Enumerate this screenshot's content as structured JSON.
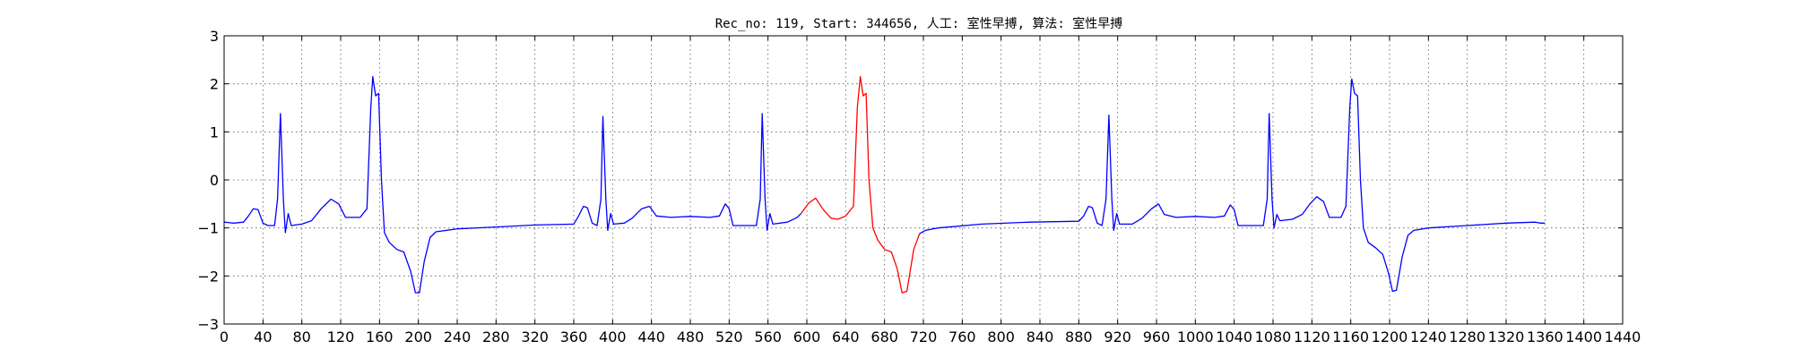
{
  "chart_data": {
    "type": "line",
    "title": "Rec_no: 119, Start: 344656, 人工: 室性早搏, 算法: 室性早搏",
    "xlabel": "",
    "ylabel": "",
    "xlim": [
      0,
      1440
    ],
    "ylim": [
      -3,
      3
    ],
    "grid": true,
    "xticks": [
      0,
      40,
      80,
      120,
      160,
      200,
      240,
      280,
      320,
      360,
      400,
      440,
      480,
      520,
      560,
      600,
      640,
      680,
      720,
      760,
      800,
      840,
      880,
      920,
      960,
      1000,
      1040,
      1080,
      1120,
      1160,
      1200,
      1240,
      1280,
      1320,
      1360,
      1400,
      1440
    ],
    "xtick_labels": [
      "0",
      "40",
      "80",
      "120",
      "160",
      "200",
      "240",
      "280",
      "320",
      "360",
      "400",
      "440",
      "480",
      "520",
      "560",
      "600",
      "640",
      "680",
      "720",
      "760",
      "800",
      "840",
      "880",
      "920",
      "960",
      "1000",
      "1040",
      "1080",
      "1120",
      "1160",
      "1200",
      "1240",
      "1280",
      "1320",
      "1360",
      "1400",
      "1440"
    ],
    "yticks": [
      -3,
      -2,
      -1,
      0,
      1,
      2,
      3
    ],
    "ytick_labels": [
      "−3",
      "−2",
      "−1",
      "0",
      "1",
      "2",
      "3"
    ],
    "series": [
      {
        "color": "#0000ff",
        "points": [
          [
            0,
            -0.88
          ],
          [
            10,
            -0.9
          ],
          [
            20,
            -0.88
          ],
          [
            25,
            -0.75
          ],
          [
            30,
            -0.6
          ],
          [
            35,
            -0.62
          ],
          [
            40,
            -0.9
          ],
          [
            45,
            -0.95
          ],
          [
            52,
            -0.95
          ],
          [
            55,
            -0.4
          ],
          [
            58,
            1.38
          ],
          [
            61,
            -0.4
          ],
          [
            63,
            -1.1
          ],
          [
            66,
            -0.7
          ],
          [
            69,
            -0.95
          ],
          [
            80,
            -0.92
          ],
          [
            90,
            -0.85
          ],
          [
            100,
            -0.6
          ],
          [
            110,
            -0.4
          ],
          [
            118,
            -0.5
          ],
          [
            125,
            -0.78
          ],
          [
            140,
            -0.78
          ],
          [
            147,
            -0.6
          ],
          [
            151,
            1.5
          ],
          [
            153,
            2.15
          ],
          [
            156,
            1.75
          ],
          [
            159,
            1.8
          ],
          [
            162,
            0
          ],
          [
            165,
            -1.1
          ],
          [
            170,
            -1.3
          ],
          [
            178,
            -1.45
          ],
          [
            185,
            -1.5
          ],
          [
            192,
            -1.9
          ],
          [
            197,
            -2.35
          ],
          [
            201,
            -2.35
          ],
          [
            206,
            -1.7
          ],
          [
            212,
            -1.2
          ],
          [
            218,
            -1.08
          ],
          [
            240,
            -1.02
          ],
          [
            280,
            -0.98
          ],
          [
            320,
            -0.94
          ],
          [
            360,
            -0.92
          ],
          [
            365,
            -0.75
          ],
          [
            370,
            -0.55
          ],
          [
            374,
            -0.58
          ],
          [
            379,
            -0.9
          ],
          [
            384,
            -0.95
          ],
          [
            388,
            -0.4
          ],
          [
            390,
            1.32
          ],
          [
            393,
            -0.4
          ],
          [
            395,
            -1.05
          ],
          [
            398,
            -0.7
          ],
          [
            401,
            -0.92
          ],
          [
            412,
            -0.9
          ],
          [
            420,
            -0.8
          ],
          [
            430,
            -0.6
          ],
          [
            438,
            -0.55
          ],
          [
            445,
            -0.75
          ],
          [
            460,
            -0.78
          ],
          [
            480,
            -0.76
          ],
          [
            500,
            -0.78
          ],
          [
            510,
            -0.75
          ],
          [
            516,
            -0.5
          ],
          [
            520,
            -0.6
          ],
          [
            524,
            -0.95
          ],
          [
            548,
            -0.95
          ],
          [
            552,
            -0.4
          ],
          [
            554,
            1.38
          ],
          [
            557,
            -0.4
          ],
          [
            559,
            -1.05
          ],
          [
            562,
            -0.7
          ],
          [
            565,
            -0.92
          ],
          [
            580,
            -0.88
          ],
          [
            590,
            -0.78
          ],
          [
            594,
            -0.7
          ]
        ]
      },
      {
        "color": "#ff0000",
        "points": [
          [
            594,
            -0.7
          ],
          [
            602,
            -0.48
          ],
          [
            609,
            -0.38
          ],
          [
            617,
            -0.62
          ],
          [
            625,
            -0.8
          ],
          [
            632,
            -0.82
          ],
          [
            640,
            -0.75
          ],
          [
            648,
            -0.55
          ],
          [
            652,
            1.5
          ],
          [
            655,
            2.15
          ],
          [
            658,
            1.75
          ],
          [
            661,
            1.8
          ],
          [
            664,
            0
          ],
          [
            668,
            -1.0
          ],
          [
            673,
            -1.25
          ],
          [
            680,
            -1.45
          ],
          [
            687,
            -1.5
          ],
          [
            693,
            -1.85
          ],
          [
            698,
            -2.35
          ],
          [
            703,
            -2.32
          ],
          [
            710,
            -1.45
          ],
          [
            716,
            -1.12
          ]
        ]
      },
      {
        "color": "#0000ff",
        "points": [
          [
            716,
            -1.12
          ],
          [
            722,
            -1.05
          ],
          [
            735,
            -1.0
          ],
          [
            780,
            -0.92
          ],
          [
            830,
            -0.88
          ],
          [
            880,
            -0.86
          ],
          [
            885,
            -0.75
          ],
          [
            890,
            -0.55
          ],
          [
            894,
            -0.58
          ],
          [
            899,
            -0.9
          ],
          [
            904,
            -0.95
          ],
          [
            908,
            -0.4
          ],
          [
            911,
            1.35
          ],
          [
            914,
            -0.4
          ],
          [
            916,
            -1.05
          ],
          [
            919,
            -0.7
          ],
          [
            922,
            -0.92
          ],
          [
            935,
            -0.92
          ],
          [
            945,
            -0.8
          ],
          [
            955,
            -0.6
          ],
          [
            962,
            -0.5
          ],
          [
            968,
            -0.72
          ],
          [
            980,
            -0.78
          ],
          [
            1000,
            -0.76
          ],
          [
            1020,
            -0.78
          ],
          [
            1030,
            -0.75
          ],
          [
            1036,
            -0.52
          ],
          [
            1040,
            -0.62
          ],
          [
            1044,
            -0.95
          ],
          [
            1070,
            -0.95
          ],
          [
            1074,
            -0.4
          ],
          [
            1076,
            1.38
          ],
          [
            1079,
            -0.4
          ],
          [
            1081,
            -1.0
          ],
          [
            1084,
            -0.72
          ],
          [
            1087,
            -0.85
          ],
          [
            1100,
            -0.82
          ],
          [
            1110,
            -0.72
          ],
          [
            1118,
            -0.5
          ],
          [
            1125,
            -0.35
          ],
          [
            1132,
            -0.45
          ],
          [
            1138,
            -0.78
          ],
          [
            1150,
            -0.78
          ],
          [
            1155,
            -0.55
          ],
          [
            1159,
            1.5
          ],
          [
            1161,
            2.1
          ],
          [
            1164,
            1.8
          ],
          [
            1167,
            1.75
          ],
          [
            1170,
            0
          ],
          [
            1173,
            -1.0
          ],
          [
            1178,
            -1.3
          ],
          [
            1186,
            -1.42
          ],
          [
            1193,
            -1.55
          ],
          [
            1199,
            -1.95
          ],
          [
            1203,
            -2.32
          ],
          [
            1207,
            -2.3
          ],
          [
            1213,
            -1.6
          ],
          [
            1219,
            -1.15
          ],
          [
            1225,
            -1.05
          ],
          [
            1240,
            -1.0
          ],
          [
            1280,
            -0.95
          ],
          [
            1320,
            -0.9
          ],
          [
            1350,
            -0.88
          ],
          [
            1355,
            -0.9
          ],
          [
            1360,
            -0.9
          ]
        ]
      }
    ]
  }
}
